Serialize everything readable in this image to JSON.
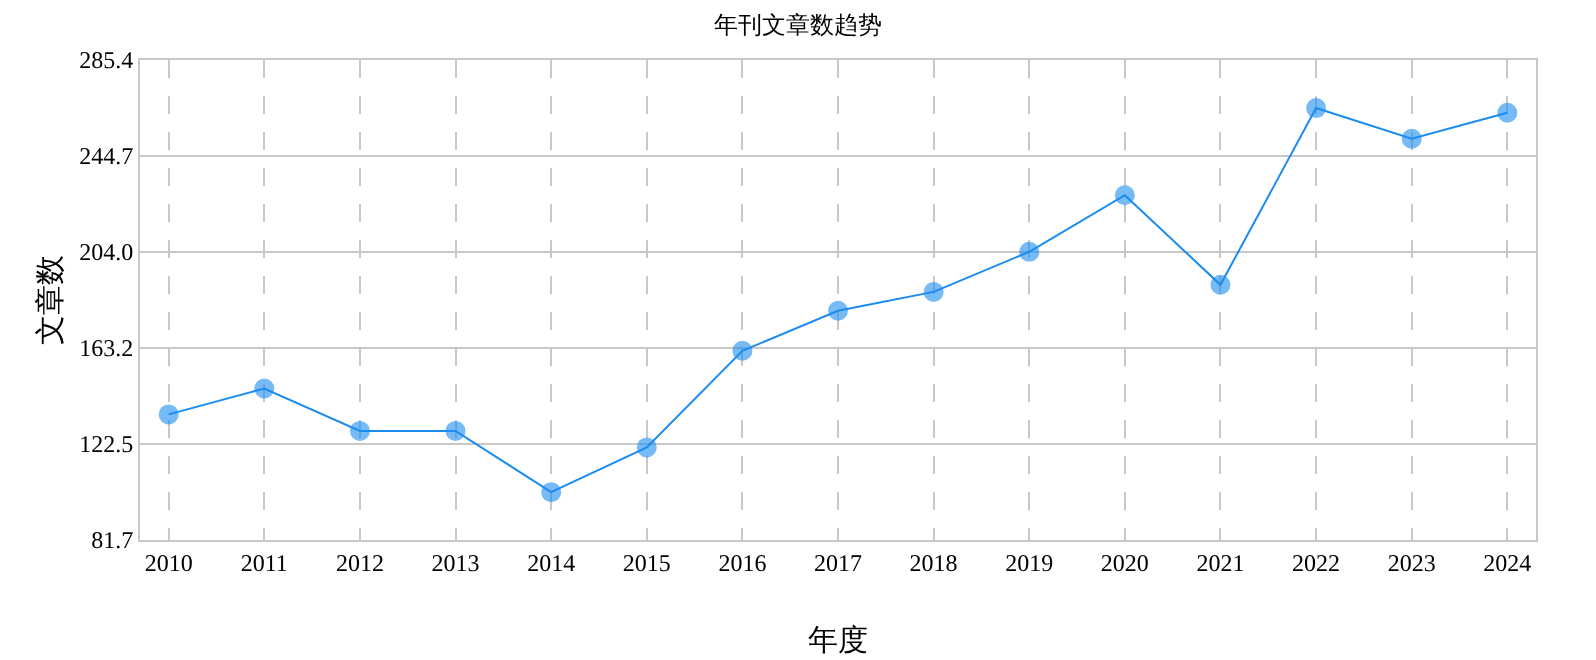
{
  "chart_data": {
    "type": "line",
    "title": "年刊文章数趋势",
    "xlabel": "年度",
    "ylabel": "文章数",
    "categories": [
      "2010",
      "2011",
      "2012",
      "2013",
      "2014",
      "2015",
      "2016",
      "2017",
      "2018",
      "2019",
      "2020",
      "2021",
      "2022",
      "2023",
      "2024"
    ],
    "series": [
      {
        "color": "#1a8cf0",
        "values": [
          135,
          146,
          128,
          128,
          102,
          121,
          162,
          179,
          187,
          204,
          228,
          190,
          265,
          252,
          263
        ]
      }
    ],
    "ylim": [
      81.7,
      285.4
    ],
    "yticks": [
      81.7,
      122.5,
      163.2,
      {
        "value": 204,
        "label": "204.0"
      },
      244.7,
      285.4
    ],
    "grid": true,
    "marker": "circle",
    "line_style": "solid",
    "legend": false
  }
}
